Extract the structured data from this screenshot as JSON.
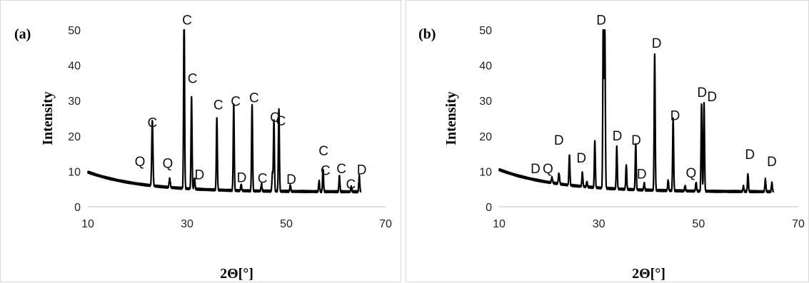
{
  "chart_data": [
    {
      "type": "line",
      "panel_label": "(a)",
      "xlabel": "2Θ[°]",
      "ylabel": "Intensity",
      "xlim": [
        10,
        70
      ],
      "ylim": [
        0,
        50
      ],
      "xticks": [
        10,
        30,
        50,
        70
      ],
      "yticks": [
        0,
        10,
        20,
        30,
        40,
        50
      ],
      "grid": false,
      "line_color": "#000000",
      "background": {
        "start": 9.8,
        "end": 4.2,
        "decay": 0.09
      },
      "peaks": [
        {
          "x": 23.0,
          "y": 18.5,
          "w": 0.12
        },
        {
          "x": 26.5,
          "y": 2.5,
          "w": 0.12
        },
        {
          "x": 29.4,
          "y": 50,
          "w": 0.1
        },
        {
          "x": 30.9,
          "y": 26,
          "w": 0.1
        },
        {
          "x": 31.5,
          "y": 3,
          "w": 0.1
        },
        {
          "x": 36.0,
          "y": 20.5,
          "w": 0.1
        },
        {
          "x": 39.4,
          "y": 24.5,
          "w": 0.1
        },
        {
          "x": 40.9,
          "y": 1.8,
          "w": 0.1
        },
        {
          "x": 43.1,
          "y": 24.5,
          "w": 0.1
        },
        {
          "x": 45.0,
          "y": 2,
          "w": 0.1
        },
        {
          "x": 47.2,
          "y": 5,
          "w": 0.1
        },
        {
          "x": 47.5,
          "y": 20,
          "w": 0.1
        },
        {
          "x": 48.5,
          "y": 23.5,
          "w": 0.1
        },
        {
          "x": 50.8,
          "y": 1.8,
          "w": 0.1
        },
        {
          "x": 56.6,
          "y": 3,
          "w": 0.1
        },
        {
          "x": 57.4,
          "y": 6.5,
          "w": 0.1
        },
        {
          "x": 60.7,
          "y": 4.5,
          "w": 0.1
        },
        {
          "x": 63.1,
          "y": 1.5,
          "w": 0.1
        },
        {
          "x": 64.7,
          "y": 4.5,
          "w": 0.1
        }
      ],
      "annotations": [
        {
          "text": "C",
          "x": 30.0,
          "y": 51.5
        },
        {
          "text": "C",
          "x": 31.1,
          "y": 35.0
        },
        {
          "text": "C",
          "x": 36.3,
          "y": 27.5
        },
        {
          "text": "C",
          "x": 39.8,
          "y": 28.5
        },
        {
          "text": "C",
          "x": 43.5,
          "y": 29.5
        },
        {
          "text": "C",
          "x": 47.7,
          "y": 24.0
        },
        {
          "text": "C",
          "x": 48.9,
          "y": 23.0
        },
        {
          "text": "C",
          "x": 23.0,
          "y": 22.5
        },
        {
          "text": "Q",
          "x": 20.5,
          "y": 11.5
        },
        {
          "text": "Q",
          "x": 26.1,
          "y": 11.0
        },
        {
          "text": "D",
          "x": 32.5,
          "y": 7.8
        },
        {
          "text": "D",
          "x": 41.0,
          "y": 7.0
        },
        {
          "text": "C",
          "x": 45.2,
          "y": 6.8
        },
        {
          "text": "D",
          "x": 51.0,
          "y": 6.5
        },
        {
          "text": "C",
          "x": 57.5,
          "y": 14.5
        },
        {
          "text": "C",
          "x": 57.9,
          "y": 9.0
        },
        {
          "text": "C",
          "x": 61.1,
          "y": 9.5
        },
        {
          "text": "C",
          "x": 63.0,
          "y": 5.0
        },
        {
          "text": "D",
          "x": 65.2,
          "y": 9.2
        }
      ]
    },
    {
      "type": "line",
      "panel_label": "(b)",
      "xlabel": "2Θ[°]",
      "ylabel": "Intensity",
      "xlim": [
        10,
        70
      ],
      "ylim": [
        0,
        50
      ],
      "xticks": [
        10,
        30,
        50,
        70
      ],
      "yticks": [
        0,
        10,
        20,
        30,
        40,
        50
      ],
      "grid": false,
      "line_color": "#000000",
      "background": {
        "start": 10.5,
        "end": 4.2,
        "decay": 0.085
      },
      "peaks": [
        {
          "x": 20.6,
          "y": 1.5,
          "w": 0.12
        },
        {
          "x": 22.0,
          "y": 3,
          "w": 0.12
        },
        {
          "x": 24.1,
          "y": 8.5,
          "w": 0.1
        },
        {
          "x": 26.7,
          "y": 4,
          "w": 0.1
        },
        {
          "x": 27.6,
          "y": 1.5,
          "w": 0.1
        },
        {
          "x": 29.2,
          "y": 13,
          "w": 0.1
        },
        {
          "x": 30.9,
          "y": 50,
          "w": 0.1
        },
        {
          "x": 31.2,
          "y": 45,
          "w": 0.1
        },
        {
          "x": 33.6,
          "y": 12,
          "w": 0.1
        },
        {
          "x": 35.5,
          "y": 7,
          "w": 0.1
        },
        {
          "x": 37.4,
          "y": 13,
          "w": 0.1
        },
        {
          "x": 39.1,
          "y": 2,
          "w": 0.1
        },
        {
          "x": 41.2,
          "y": 38.5,
          "w": 0.1
        },
        {
          "x": 43.9,
          "y": 3,
          "w": 0.1
        },
        {
          "x": 44.9,
          "y": 20.5,
          "w": 0.1
        },
        {
          "x": 47.3,
          "y": 1.5,
          "w": 0.1
        },
        {
          "x": 49.5,
          "y": 2.5,
          "w": 0.1
        },
        {
          "x": 50.6,
          "y": 24.5,
          "w": 0.1
        },
        {
          "x": 51.1,
          "y": 25,
          "w": 0.1
        },
        {
          "x": 59.0,
          "y": 1.5,
          "w": 0.1
        },
        {
          "x": 59.9,
          "y": 5,
          "w": 0.1
        },
        {
          "x": 63.4,
          "y": 3.5,
          "w": 0.1
        },
        {
          "x": 64.7,
          "y": 2.5,
          "w": 0.1
        }
      ],
      "annotations": [
        {
          "text": "D",
          "x": 17.3,
          "y": 9.5
        },
        {
          "text": "Q",
          "x": 19.8,
          "y": 9.5
        },
        {
          "text": "D",
          "x": 22.0,
          "y": 17.5
        },
        {
          "text": "D",
          "x": 26.5,
          "y": 12.5
        },
        {
          "text": "D",
          "x": 30.5,
          "y": 51.5
        },
        {
          "text": "D",
          "x": 33.7,
          "y": 18.8
        },
        {
          "text": "D",
          "x": 37.5,
          "y": 17.5
        },
        {
          "text": "D",
          "x": 38.6,
          "y": 8.0
        },
        {
          "text": "D",
          "x": 41.6,
          "y": 45.0
        },
        {
          "text": "D",
          "x": 45.3,
          "y": 24.5
        },
        {
          "text": "Q",
          "x": 48.5,
          "y": 8.3
        },
        {
          "text": "D",
          "x": 50.7,
          "y": 31.0
        },
        {
          "text": "D",
          "x": 52.7,
          "y": 29.8
        },
        {
          "text": "D",
          "x": 60.3,
          "y": 13.5
        },
        {
          "text": "D",
          "x": 64.7,
          "y": 11.5
        }
      ]
    }
  ]
}
